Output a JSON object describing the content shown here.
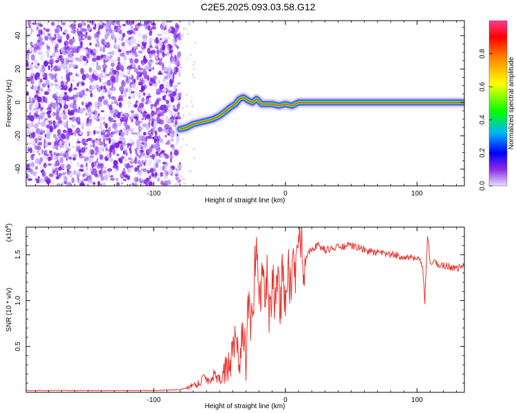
{
  "title": "C2E5.2025.093.03.58.G12",
  "chart_data": [
    {
      "type": "heatmap",
      "xlabel": "Height of straight line (km)",
      "ylabel": "Frequency (Hz)",
      "xlim": [
        -197,
        136
      ],
      "ylim": [
        -50,
        49
      ],
      "xticks": [
        -100,
        0,
        100
      ],
      "xtick_labels": [
        "-100",
        "0",
        "100"
      ],
      "yticks": [
        -40,
        -20,
        0,
        20,
        40
      ],
      "ytick_labels": [
        "-40",
        "-20",
        "0",
        "20",
        "40"
      ],
      "noise_region_x": [
        -197,
        -80
      ],
      "ridge": {
        "x": [
          -80,
          -75,
          -70,
          -65,
          -60,
          -55,
          -50,
          -45,
          -42,
          -38,
          -35,
          -32,
          -28,
          -25,
          -22,
          -18,
          -15,
          -10,
          -5,
          0,
          5,
          10,
          20,
          40,
          60,
          80,
          100,
          120,
          136
        ],
        "freq": [
          -16,
          -15,
          -13,
          -12,
          -11,
          -10,
          -8,
          -5,
          -3,
          -1,
          2,
          3,
          1,
          0,
          2,
          -1,
          -1,
          -1,
          -2,
          -1,
          -2,
          0,
          0,
          0,
          0,
          0,
          0,
          0,
          0
        ]
      },
      "colorbar": {
        "label": "Normalized spectral amplitude",
        "range": [
          0,
          1
        ],
        "ticks": [
          0.0,
          0.2,
          0.4,
          0.6,
          0.8
        ],
        "tick_labels": [
          "0.0",
          "0.2",
          "0.4",
          "0.6",
          "0.8"
        ]
      },
      "grid": false
    },
    {
      "type": "line",
      "xlabel": "Height of straight line (km)",
      "ylabel": "SNR (10 * v/v)",
      "scale_label": "(x10",
      "scale_exponent": "4",
      "scale_suffix": ")",
      "xlim": [
        -197,
        136
      ],
      "ylim": [
        0,
        1.8
      ],
      "xticks": [
        -100,
        0,
        100
      ],
      "xtick_labels": [
        "-100",
        "0",
        "100"
      ],
      "yticks": [
        0.5,
        1.0,
        1.5
      ],
      "ytick_labels": [
        "0.5",
        "1.0",
        "1.5"
      ],
      "series": [
        {
          "color": "#e8302a",
          "x": [
            -197,
            -180,
            -160,
            -140,
            -120,
            -100,
            -80,
            -75,
            -70,
            -65,
            -62,
            -58,
            -54,
            -50,
            -46,
            -42,
            -38,
            -35,
            -32,
            -30,
            -28,
            -26,
            -24,
            -22,
            -20,
            -18,
            -16,
            -14,
            -12,
            -10,
            -8,
            -6,
            -4,
            -2,
            0,
            2,
            4,
            6,
            8,
            10,
            12,
            14,
            16,
            20,
            25,
            30,
            40,
            50,
            55,
            60,
            70,
            80,
            90,
            100,
            104,
            106,
            108,
            110,
            115,
            120,
            125,
            130,
            136
          ],
          "y": [
            0.02,
            0.02,
            0.02,
            0.02,
            0.02,
            0.02,
            0.03,
            0.05,
            0.08,
            0.1,
            0.18,
            0.12,
            0.2,
            0.15,
            0.22,
            0.3,
            0.55,
            0.3,
            0.75,
            0.35,
            0.95,
            0.6,
            1.1,
            1.75,
            0.9,
            1.3,
            1.1,
            1.25,
            0.8,
            1.2,
            1.0,
            1.3,
            0.9,
            1.35,
            1.0,
            1.4,
            1.1,
            1.45,
            1.3,
            1.5,
            1.78,
            1.3,
            1.5,
            1.57,
            1.6,
            1.55,
            1.58,
            1.6,
            1.58,
            1.55,
            1.52,
            1.5,
            1.48,
            1.45,
            1.4,
            0.98,
            1.72,
            1.42,
            1.4,
            1.38,
            1.37,
            1.35,
            1.38
          ]
        }
      ],
      "grid": false
    }
  ]
}
